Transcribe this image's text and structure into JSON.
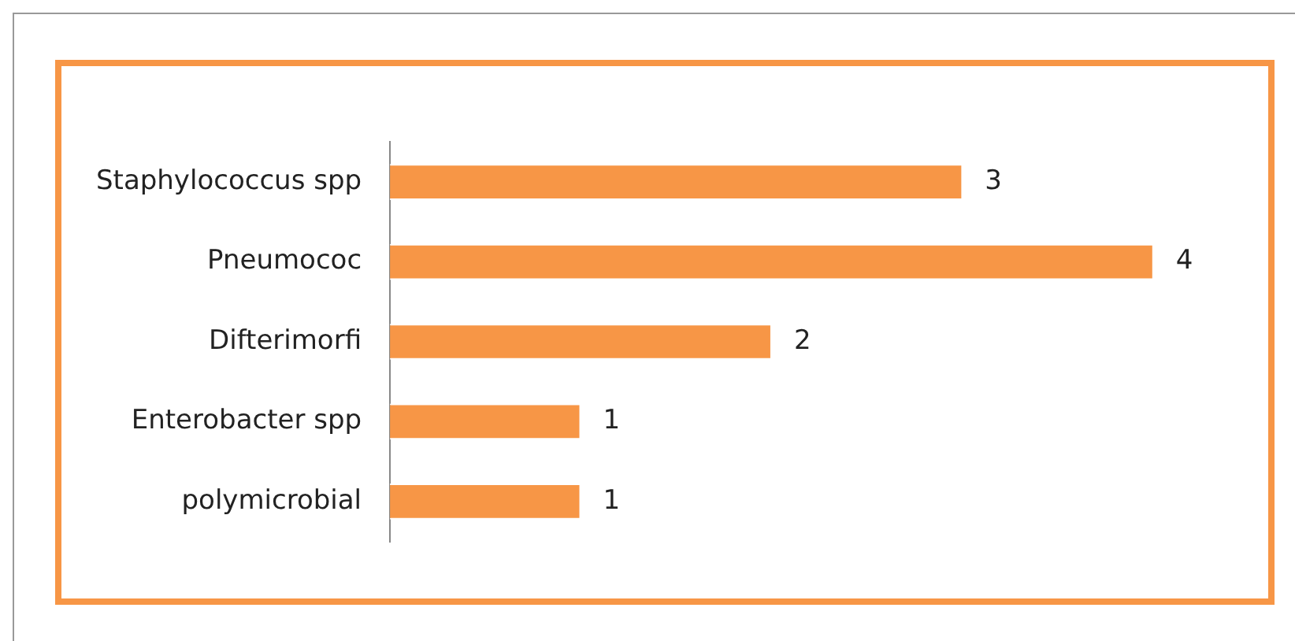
{
  "chart_data": {
    "type": "bar",
    "orientation": "horizontal",
    "categories": [
      "Staphylococcus spp",
      "Pneumococ",
      "Difterimorfi",
      "Enterobacter spp",
      "polymicrobial"
    ],
    "values": [
      3,
      4,
      2,
      1,
      1
    ],
    "color": "#f79646",
    "data_labels": true
  }
}
